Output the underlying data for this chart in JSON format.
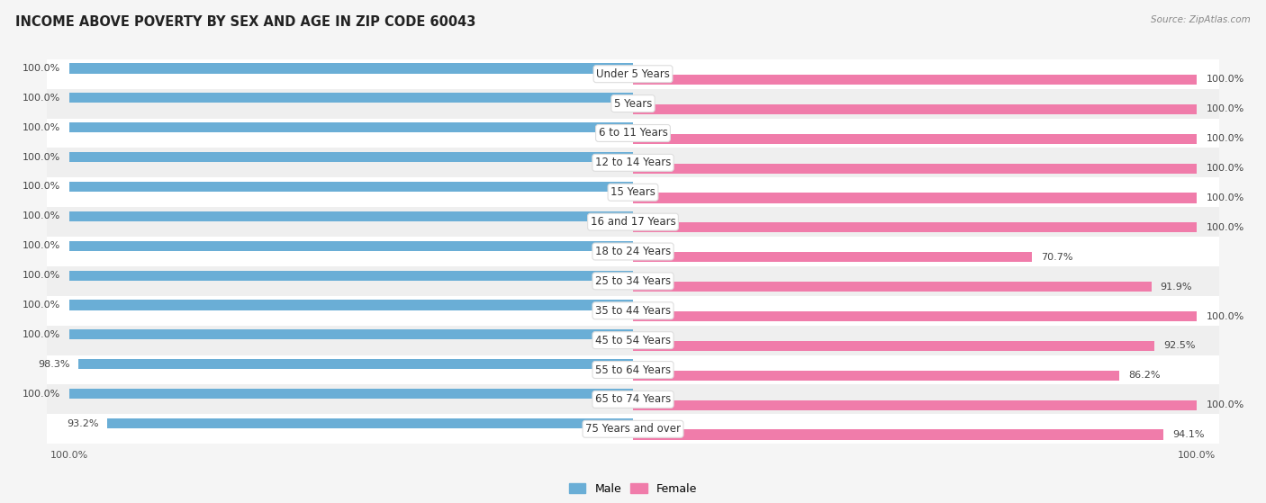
{
  "title": "INCOME ABOVE POVERTY BY SEX AND AGE IN ZIP CODE 60043",
  "source": "Source: ZipAtlas.com",
  "categories": [
    "Under 5 Years",
    "5 Years",
    "6 to 11 Years",
    "12 to 14 Years",
    "15 Years",
    "16 and 17 Years",
    "18 to 24 Years",
    "25 to 34 Years",
    "35 to 44 Years",
    "45 to 54 Years",
    "55 to 64 Years",
    "65 to 74 Years",
    "75 Years and over"
  ],
  "male_values": [
    100.0,
    100.0,
    100.0,
    100.0,
    100.0,
    100.0,
    100.0,
    100.0,
    100.0,
    100.0,
    98.3,
    100.0,
    93.2
  ],
  "female_values": [
    100.0,
    100.0,
    100.0,
    100.0,
    100.0,
    100.0,
    70.7,
    91.9,
    100.0,
    92.5,
    86.2,
    100.0,
    94.1
  ],
  "male_color": "#6aaed6",
  "female_color": "#f07caa",
  "female_color_light": "#f9cedd",
  "row_bg_odd": "#ffffff",
  "row_bg_even": "#efefef",
  "background_color": "#f5f5f5",
  "title_fontsize": 10.5,
  "label_fontsize": 8.5,
  "value_fontsize": 8.0,
  "legend_male": "Male",
  "legend_female": "Female"
}
